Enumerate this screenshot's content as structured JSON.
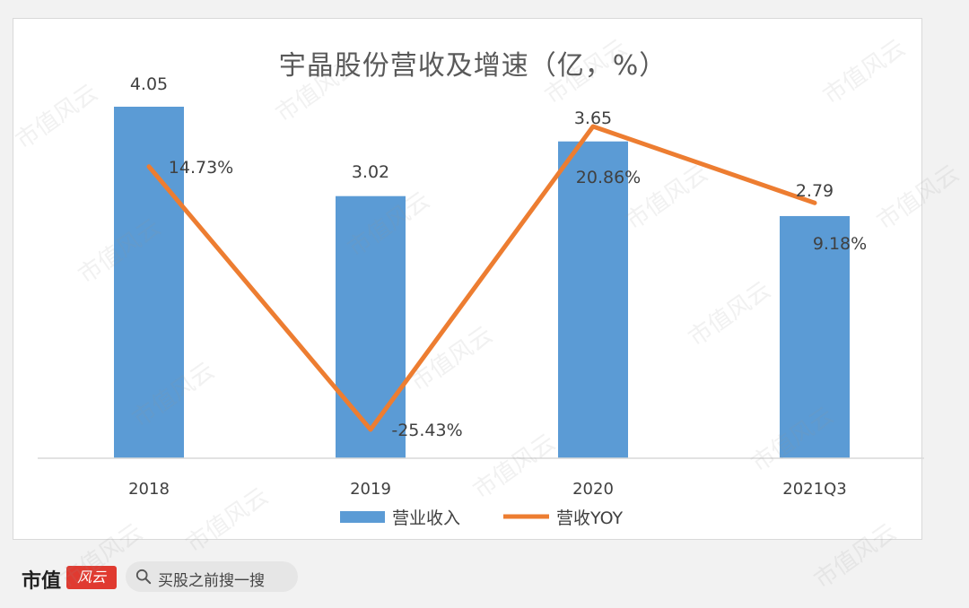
{
  "chart_data": {
    "type": "bar",
    "title": "宇晶股份营收及增速（亿，%）",
    "categories": [
      "2018",
      "2019",
      "2020",
      "2021Q3"
    ],
    "series": [
      {
        "name": "营业收入",
        "kind": "bar",
        "color": "#5b9bd5",
        "values": [
          4.05,
          3.02,
          3.65,
          2.79
        ],
        "labels": [
          "4.05",
          "3.02",
          "3.65",
          "2.79"
        ]
      },
      {
        "name": "营收YOY",
        "kind": "line",
        "color": "#ed7d31",
        "values": [
          14.73,
          -25.43,
          20.86,
          9.18
        ],
        "labels": [
          "14.73%",
          "-25.43%",
          "20.86%",
          "9.18%"
        ]
      }
    ],
    "bar_axis_range": [
      0,
      4.05
    ],
    "line_axis_range": [
      -25.43,
      20.86
    ],
    "legend_position": "bottom",
    "grid": false
  },
  "footer": {
    "brand": "市值",
    "seal_text": "风云",
    "search_placeholder": "买股之前搜一搜"
  },
  "watermark_text": "市值风云",
  "colors": {
    "bar": "#5b9bd5",
    "line": "#ed7d31",
    "text": "#595959",
    "seal": "#e03a30"
  }
}
